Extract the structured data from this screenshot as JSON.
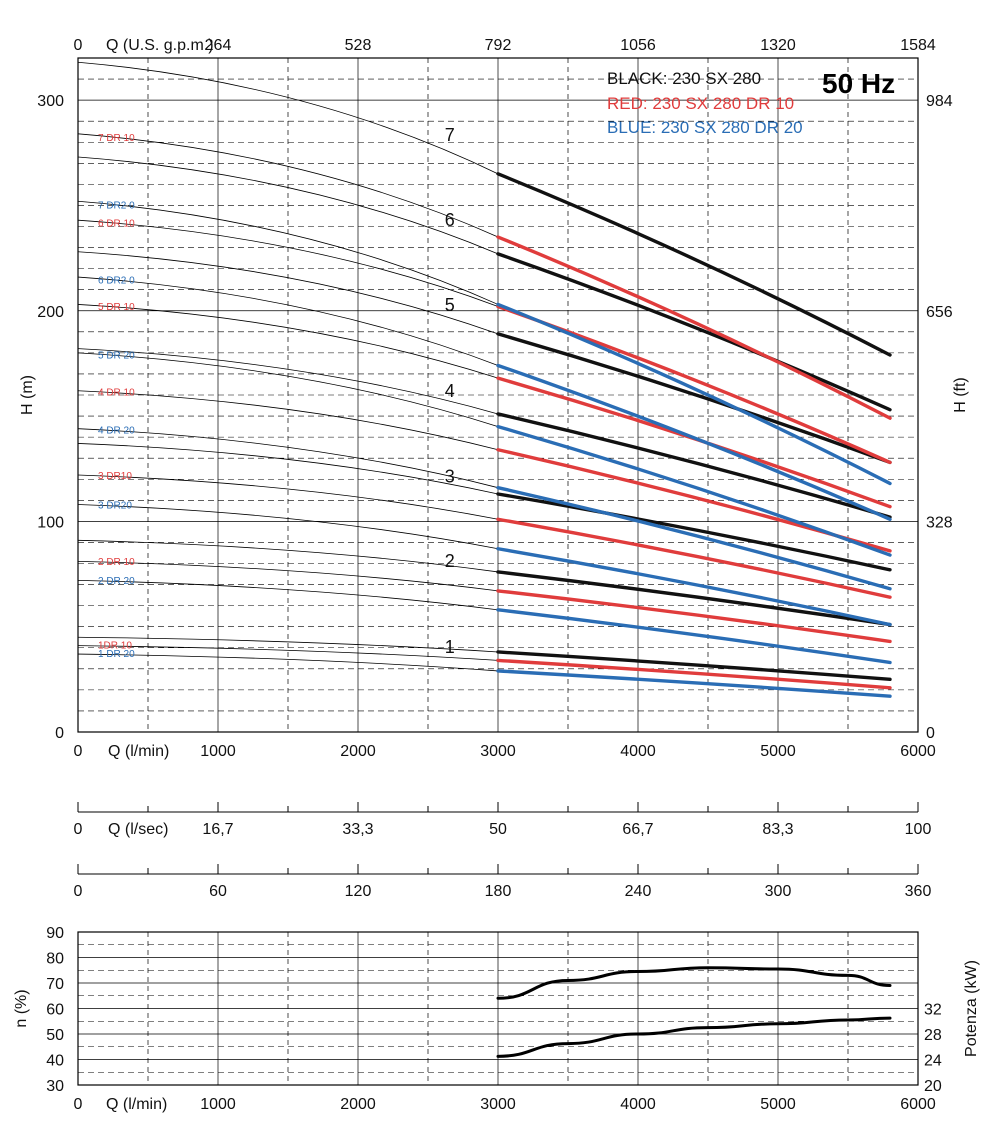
{
  "chart_data": {
    "type": "line",
    "title": "50 Hz",
    "legend": [
      {
        "text": "BLACK: 230 SX 280",
        "color": "#111111"
      },
      {
        "text": "RED: 230 SX 280 DR 10",
        "color": "#e03c3c"
      },
      {
        "text": "BLUE: 230 SX 280 DR 20",
        "color": "#2a6db5"
      }
    ],
    "head_chart": {
      "xlabel": "Q (l/min)",
      "ylabel_left": "H (m)",
      "ylabel_right": "H (ft)",
      "xlim": [
        0,
        6000
      ],
      "ylim": [
        0,
        320
      ],
      "x_ticks": [
        "0",
        "1000",
        "2000",
        "3000",
        "4000",
        "5000",
        "6000"
      ],
      "y_ticks_left": [
        "0",
        "100",
        "200",
        "300"
      ],
      "y_ticks_right": [
        "0",
        "328",
        "656",
        "984"
      ],
      "top_axis_label": "Q (U.S. g.p.m.)",
      "top_ticks": [
        "0",
        "264",
        "528",
        "792",
        "1056",
        "1320",
        "1584"
      ],
      "operating_range": [
        3000,
        5800
      ],
      "series": [
        {
          "name": "1",
          "color": "#111111",
          "label": "1",
          "x": [
            0,
            3000,
            5800
          ],
          "y": [
            45,
            38,
            25
          ]
        },
        {
          "name": "1 DR 10",
          "color": "#e03c3c",
          "label": "1DR 10",
          "x": [
            0,
            3000,
            5800
          ],
          "y": [
            41,
            34,
            21
          ]
        },
        {
          "name": "1 DR 20",
          "color": "#2a6db5",
          "label": "1 DR 20",
          "x": [
            0,
            3000,
            5800
          ],
          "y": [
            37,
            29,
            17
          ]
        },
        {
          "name": "2",
          "color": "#111111",
          "label": "2",
          "x": [
            0,
            3000,
            5800
          ],
          "y": [
            91,
            76,
            51
          ]
        },
        {
          "name": "2 DR 10",
          "color": "#e03c3c",
          "label": "2 DR 10",
          "x": [
            0,
            3000,
            5800
          ],
          "y": [
            81,
            67,
            43
          ]
        },
        {
          "name": "2 DR 20",
          "color": "#2a6db5",
          "label": "2 DR 20",
          "x": [
            0,
            3000,
            5800
          ],
          "y": [
            72,
            58,
            33
          ]
        },
        {
          "name": "3",
          "color": "#111111",
          "label": "3",
          "x": [
            0,
            3000,
            5800
          ],
          "y": [
            137,
            113,
            77
          ]
        },
        {
          "name": "3 DR 10",
          "color": "#e03c3c",
          "label": "3 DR10",
          "x": [
            0,
            3000,
            5800
          ],
          "y": [
            122,
            101,
            64
          ]
        },
        {
          "name": "3 DR 20",
          "color": "#2a6db5",
          "label": "3 DR20",
          "x": [
            0,
            3000,
            5800
          ],
          "y": [
            108,
            87,
            51
          ]
        },
        {
          "name": "4",
          "color": "#111111",
          "label": "4",
          "x": [
            0,
            3000,
            5800
          ],
          "y": [
            182,
            151,
            102
          ]
        },
        {
          "name": "4 DR 10",
          "color": "#e03c3c",
          "label": "4 DR 10",
          "x": [
            0,
            3000,
            5800
          ],
          "y": [
            162,
            134,
            86
          ]
        },
        {
          "name": "4 DR 20",
          "color": "#2a6db5",
          "label": "4 DR 20",
          "x": [
            0,
            3000,
            5800
          ],
          "y": [
            144,
            116,
            68
          ]
        },
        {
          "name": "5",
          "color": "#111111",
          "label": "5",
          "x": [
            0,
            3000,
            5800
          ],
          "y": [
            228,
            189,
            128
          ]
        },
        {
          "name": "5 DR 10",
          "color": "#e03c3c",
          "label": "5 DR 10",
          "x": [
            0,
            3000,
            5800
          ],
          "y": [
            203,
            168,
            107
          ]
        },
        {
          "name": "5 DR 20",
          "color": "#2a6db5",
          "label": "5 DR 20",
          "x": [
            0,
            3000,
            5800
          ],
          "y": [
            180,
            145,
            84
          ]
        },
        {
          "name": "6",
          "color": "#111111",
          "label": "6",
          "x": [
            0,
            3000,
            5800
          ],
          "y": [
            273,
            227,
            153
          ]
        },
        {
          "name": "6 DR 10",
          "color": "#e03c3c",
          "label": "6 DR 10",
          "x": [
            0,
            3000,
            5800
          ],
          "y": [
            243,
            202,
            128
          ]
        },
        {
          "name": "6 DR 20",
          "color": "#2a6db5",
          "label": "6 DR2 0",
          "x": [
            0,
            3000,
            5800
          ],
          "y": [
            216,
            174,
            101
          ]
        },
        {
          "name": "7",
          "color": "#111111",
          "label": "7",
          "x": [
            0,
            3000,
            5800
          ],
          "y": [
            318,
            265,
            179
          ]
        },
        {
          "name": "7 DR 10",
          "color": "#e03c3c",
          "label": "7 DR 10",
          "x": [
            0,
            3000,
            5800
          ],
          "y": [
            284,
            235,
            149
          ]
        },
        {
          "name": "7 DR 20",
          "color": "#2a6db5",
          "label": "7 DR2 0",
          "x": [
            0,
            3000,
            5800
          ],
          "y": [
            252,
            203,
            118
          ]
        }
      ]
    },
    "flow_axes": [
      {
        "label": "Q (l/sec)",
        "ticks": [
          "0",
          "16,7",
          "33,3",
          "50",
          "66,7",
          "83,3",
          "100"
        ]
      },
      {
        "label": "",
        "ticks": [
          "0",
          "60",
          "120",
          "180",
          "240",
          "300",
          "360"
        ]
      }
    ],
    "efficiency_chart": {
      "xlabel": "Q (l/min)",
      "ylabel_left": "n (%)",
      "ylabel_right": "Potenza (kW)",
      "xlim": [
        0,
        6000
      ],
      "ylim": [
        30,
        90
      ],
      "x_ticks": [
        "0",
        "1000",
        "2000",
        "3000",
        "4000",
        "5000",
        "6000"
      ],
      "y_ticks_left": [
        "30",
        "40",
        "50",
        "60",
        "70",
        "80",
        "90"
      ],
      "y_ticks_right": [
        "20",
        "24",
        "28",
        "32"
      ],
      "efficiency": {
        "x": [
          3000,
          3500,
          4000,
          4500,
          5000,
          5500,
          5800
        ],
        "y": [
          64,
          71,
          74.5,
          76,
          75.5,
          73,
          69
        ]
      },
      "power_kw": {
        "x": [
          3000,
          3500,
          4000,
          4500,
          5000,
          5500,
          5800
        ],
        "y": [
          24.5,
          26.5,
          28,
          29,
          29.6,
          30.2,
          30.5
        ]
      }
    }
  }
}
